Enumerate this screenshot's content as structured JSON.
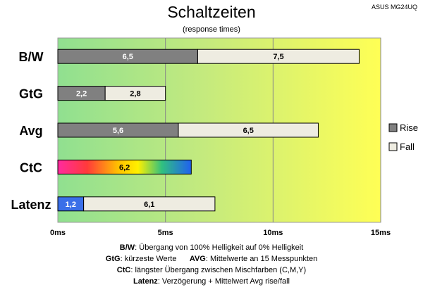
{
  "header": {
    "title": "Schaltzeiten",
    "subtitle": "(response times)",
    "model": "ASUS MG24UQ"
  },
  "colors": {
    "rise": "#808080",
    "fall": "#eeece1",
    "latency_rise": "#3a6fe8",
    "bg_left": "#90e090",
    "bg_right": "#ffff55"
  },
  "chart_data": {
    "type": "bar",
    "orientation": "horizontal",
    "stacked": true,
    "title": "Schaltzeiten",
    "subtitle": "(response times)",
    "categories": [
      "B/W",
      "GtG",
      "Avg",
      "CtC",
      "Latenz"
    ],
    "series": [
      {
        "name": "Rise",
        "values": [
          6.5,
          2.2,
          5.6,
          6.2,
          1.2
        ]
      },
      {
        "name": "Fall",
        "values": [
          7.5,
          2.8,
          6.5,
          null,
          6.1
        ]
      }
    ],
    "x_ticks": [
      "0ms",
      "5ms",
      "10ms",
      "15ms"
    ],
    "xlim": [
      0,
      15
    ],
    "grid": true,
    "legend_position": "right",
    "legend": [
      "Rise",
      "Fall"
    ],
    "notes": [
      {
        "label": "B/W",
        "text": ":  Übergang von 100% Helligkeit auf 0% Helligkeit"
      },
      {
        "label": "GtG",
        "text": ": kürzeste  Werte",
        "label2": "AVG",
        "text2": ": Mittelwerte  an 15 Messpunkten"
      },
      {
        "label": "CtC",
        "text": ": längster Übergang  zwischen Mischfarben (C,M,Y)"
      },
      {
        "label": "Latenz",
        "text": ": Verzögerung  + Mittelwert  Avg rise/fall"
      }
    ]
  }
}
